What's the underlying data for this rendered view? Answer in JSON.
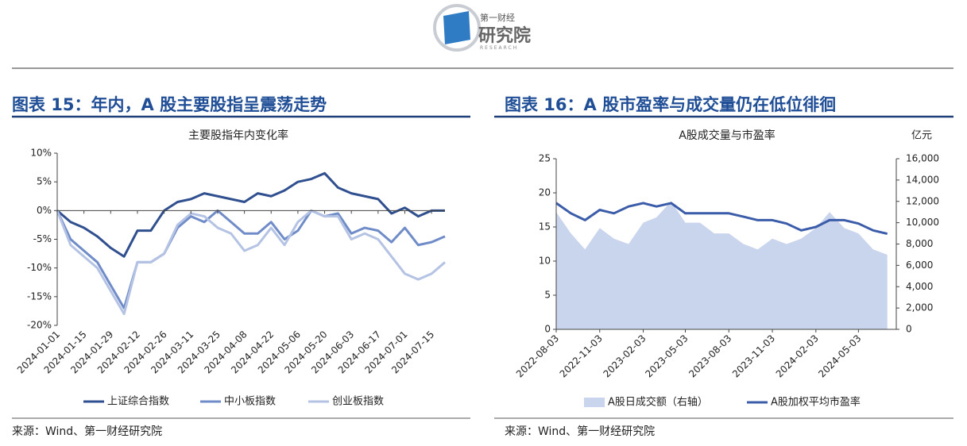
{
  "header": {
    "logo_top": "第一财经",
    "logo_main": "研究院",
    "logo_sub": "RESEARCH"
  },
  "panels": [
    {
      "heading": "图表 15：年内，A 股主要股指呈震荡走势",
      "source": "来源：Wind、第一财经研究院"
    },
    {
      "heading": "图表 16：A 股市盈率与成交量仍在低位徘徊",
      "source": "来源：Wind、第一财经研究院"
    }
  ],
  "chart_data": [
    {
      "type": "line",
      "title": "主要股指年内变化率",
      "legend": "bottom",
      "x": [
        "2024-01-01",
        "2024-01-08",
        "2024-01-15",
        "2024-01-22",
        "2024-01-29",
        "2024-02-05",
        "2024-02-12",
        "2024-02-19",
        "2024-02-26",
        "2024-03-04",
        "2024-03-11",
        "2024-03-18",
        "2024-03-25",
        "2024-04-01",
        "2024-04-08",
        "2024-04-15",
        "2024-04-22",
        "2024-04-29",
        "2024-05-06",
        "2024-05-13",
        "2024-05-20",
        "2024-05-27",
        "2024-06-03",
        "2024-06-10",
        "2024-06-17",
        "2024-06-24",
        "2024-07-01",
        "2024-07-08",
        "2024-07-15",
        "2024-07-22"
      ],
      "xlim": [
        "2024-01-01",
        "2024-07-22"
      ],
      "xticks": [
        "2024-01-01",
        "2024-01-15",
        "2024-01-29",
        "2024-02-12",
        "2024-02-26",
        "2024-03-11",
        "2024-03-25",
        "2024-04-08",
        "2024-04-22",
        "2024-05-06",
        "2024-05-20",
        "2024-06-03",
        "2024-06-17",
        "2024-07-01",
        "2024-07-15"
      ],
      "ylim": [
        -20,
        10
      ],
      "yticks": [
        {
          "value": 10,
          "label": "10%"
        },
        {
          "value": 5,
          "label": "5%"
        },
        {
          "value": 0,
          "label": "0%"
        },
        {
          "value": -5,
          "label": "-5%"
        },
        {
          "value": -10,
          "label": "-10%"
        },
        {
          "value": -15,
          "label": "-15%"
        },
        {
          "value": -20,
          "label": "-20%"
        }
      ],
      "series": [
        {
          "name": "上证综合指数",
          "color": "#2f4f8f",
          "values": [
            0,
            -2,
            -3,
            -4.5,
            -6.5,
            -8,
            -3.5,
            -3.5,
            0,
            1.5,
            2,
            3,
            2.5,
            2,
            1.5,
            3,
            2.5,
            3.5,
            5,
            5.5,
            6.5,
            4,
            3,
            2.5,
            2,
            -0.5,
            0.5,
            -1,
            0,
            0
          ]
        },
        {
          "name": "中小板指数",
          "color": "#6f8cc8",
          "values": [
            0,
            -5,
            -7,
            -9,
            -13,
            -17,
            -9,
            -9,
            -7.5,
            -3,
            -1,
            -2,
            0,
            -2,
            -4,
            -4,
            -2,
            -5,
            -3.5,
            0,
            -1,
            -0.5,
            -4,
            -3,
            -3.5,
            -5.5,
            -3,
            -6,
            -5.5,
            -4.5
          ]
        },
        {
          "name": "创业板指数",
          "color": "#b4c3e4",
          "values": [
            0,
            -6,
            -8,
            -10,
            -14,
            -18,
            -9,
            -9,
            -7.5,
            -2.5,
            -0.5,
            -1,
            -3,
            -4,
            -7,
            -6,
            -3,
            -6,
            -2,
            0,
            -1,
            -1,
            -5,
            -4,
            -5,
            -8,
            -11,
            -12,
            -11,
            -9
          ]
        }
      ]
    },
    {
      "type": "line",
      "title": "A股成交量与市盈率",
      "legend": "bottom",
      "y2label": "亿元",
      "x": [
        "2022-08-03",
        "2022-09-03",
        "2022-10-03",
        "2022-11-03",
        "2022-12-03",
        "2023-01-03",
        "2023-02-03",
        "2023-03-03",
        "2023-04-03",
        "2023-05-03",
        "2023-06-03",
        "2023-07-03",
        "2023-08-03",
        "2023-09-03",
        "2023-10-03",
        "2023-11-03",
        "2023-12-03",
        "2024-01-03",
        "2024-02-03",
        "2024-03-03",
        "2024-04-03",
        "2024-05-03",
        "2024-06-03",
        "2024-07-03"
      ],
      "xlim": [
        "2022-08-03",
        "2024-07-22"
      ],
      "xticks": [
        "2022-08-03",
        "2022-11-03",
        "2023-02-03",
        "2023-05-03",
        "2023-08-03",
        "2023-11-03",
        "2024-02-03",
        "2024-05-03"
      ],
      "ylim": [
        0,
        25
      ],
      "yticks": [
        0,
        5,
        10,
        15,
        20,
        25
      ],
      "y2lim": [
        0,
        16000
      ],
      "y2ticks": [
        0,
        {
          "value": 2000,
          "label": "2,000"
        },
        {
          "value": 4000,
          "label": "4,000"
        },
        {
          "value": 6000,
          "label": "6,000"
        },
        {
          "value": 8000,
          "label": "8,000"
        },
        {
          "value": 10000,
          "label": "10,000"
        },
        {
          "value": 12000,
          "label": "12,000"
        },
        {
          "value": 14000,
          "label": "14,000"
        },
        {
          "value": 16000,
          "label": "16,000"
        }
      ],
      "series": [
        {
          "name": "A股日成交额（右轴）",
          "type": "area",
          "axis": "y2",
          "color": "#c9d4ed",
          "values": [
            11000,
            9000,
            7500,
            9500,
            8500,
            8000,
            10000,
            10500,
            12000,
            10000,
            10000,
            9000,
            9000,
            8000,
            7500,
            8500,
            8000,
            8500,
            9500,
            11000,
            9500,
            9000,
            7500,
            7000
          ]
        },
        {
          "name": "A股加权平均市盈率",
          "type": "line",
          "color": "#3b5ca8",
          "values": [
            18.5,
            17,
            16,
            17.5,
            17,
            18,
            18.5,
            18,
            18.5,
            17,
            17,
            17,
            17,
            16.5,
            16,
            16,
            15.5,
            14.5,
            15,
            16,
            16,
            15.5,
            14.5,
            14
          ]
        }
      ]
    }
  ]
}
